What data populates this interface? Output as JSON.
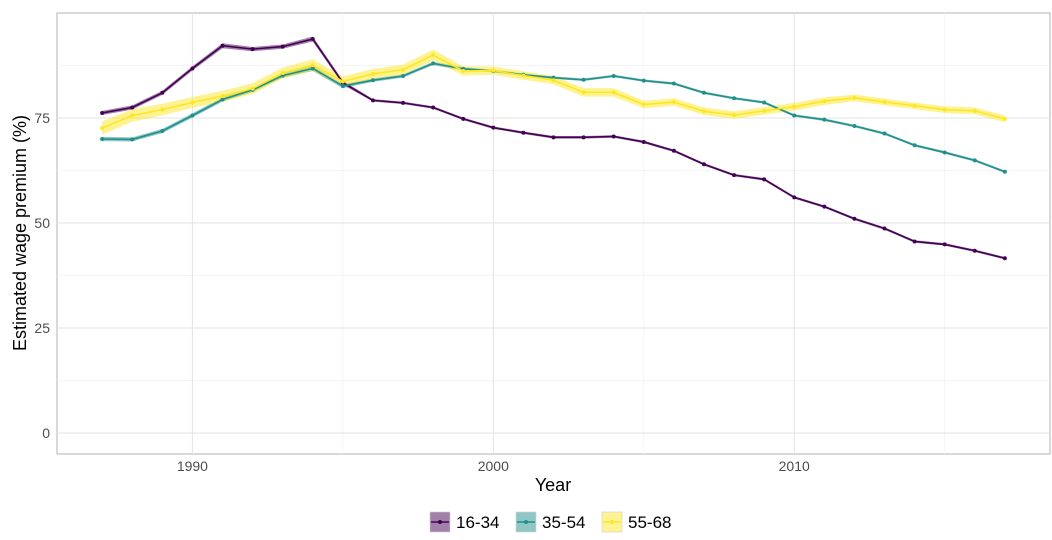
{
  "chart_data": {
    "type": "line",
    "title": "",
    "xlabel": "Year",
    "ylabel": "Estimated wage premium (%)",
    "xlim": [
      1985.5,
      2018.5
    ],
    "ylim": [
      -5,
      100
    ],
    "xticks": [
      1990,
      2000,
      2010
    ],
    "yticks": [
      0,
      25,
      50,
      75
    ],
    "grid": true,
    "legend_position": "bottom",
    "x": [
      1987,
      1988,
      1989,
      1990,
      1991,
      1992,
      1993,
      1994,
      1995,
      1996,
      1997,
      1998,
      1999,
      2000,
      2001,
      2002,
      2003,
      2004,
      2005,
      2006,
      2007,
      2008,
      2009,
      2010,
      2011,
      2012,
      2013,
      2014,
      2015,
      2016,
      2017
    ],
    "series": [
      {
        "name": "16-34",
        "color": "#440154",
        "values": [
          76.2,
          77.5,
          81.0,
          86.8,
          92.2,
          91.4,
          92.0,
          93.8,
          83.4,
          79.2,
          78.6,
          77.5,
          74.8,
          72.7,
          71.5,
          70.4,
          70.4,
          70.6,
          69.3,
          67.2,
          64.0,
          61.4,
          60.4,
          56.1,
          53.9,
          51.0,
          48.7,
          45.6,
          44.9,
          43.4,
          41.6
        ],
        "band": [
          0.5,
          0.5,
          0.5,
          0.5,
          0.6,
          0.5,
          0.5,
          0.6,
          0.5,
          0.3,
          0.3,
          0.3,
          0.3,
          0.3,
          0.3,
          0.3,
          0.3,
          0.3,
          0.3,
          0.3,
          0.3,
          0.3,
          0.3,
          0.3,
          0.3,
          0.3,
          0.3,
          0.3,
          0.3,
          0.3,
          0.3
        ]
      },
      {
        "name": "35-54",
        "color": "#21908C",
        "values": [
          70.0,
          69.9,
          71.9,
          75.6,
          79.4,
          81.7,
          85.1,
          86.8,
          82.6,
          84.0,
          85.0,
          88.0,
          86.7,
          86.2,
          85.3,
          84.6,
          84.1,
          85.0,
          83.9,
          83.2,
          81.0,
          79.7,
          78.7,
          75.6,
          74.6,
          73.1,
          71.3,
          68.5,
          66.8,
          64.9,
          62.2
        ],
        "band": [
          0.5,
          0.5,
          0.5,
          0.5,
          0.5,
          0.5,
          0.5,
          0.6,
          0.5,
          0.4,
          0.4,
          0.4,
          0.4,
          0.3,
          0.3,
          0.3,
          0.3,
          0.3,
          0.3,
          0.3,
          0.3,
          0.3,
          0.3,
          0.3,
          0.3,
          0.3,
          0.3,
          0.3,
          0.3,
          0.3,
          0.3
        ]
      },
      {
        "name": "55-68",
        "color": "#FDE725",
        "values": [
          72.6,
          75.6,
          77.0,
          78.7,
          80.2,
          82.0,
          85.7,
          87.6,
          83.7,
          85.5,
          86.5,
          90.0,
          86.2,
          86.3,
          85.1,
          84.0,
          81.1,
          81.1,
          78.2,
          78.8,
          76.6,
          75.7,
          76.7,
          77.7,
          79.0,
          79.8,
          78.8,
          77.9,
          77.0,
          76.7,
          74.8
        ],
        "band": [
          1.6,
          1.5,
          1.4,
          1.3,
          1.3,
          1.3,
          1.3,
          1.4,
          1.2,
          1.2,
          1.2,
          1.3,
          1.1,
          1.0,
          1.0,
          1.0,
          1.0,
          1.0,
          0.9,
          0.9,
          0.9,
          0.9,
          0.9,
          0.9,
          0.9,
          0.8,
          0.8,
          0.8,
          0.8,
          0.8,
          0.8
        ]
      }
    ]
  }
}
